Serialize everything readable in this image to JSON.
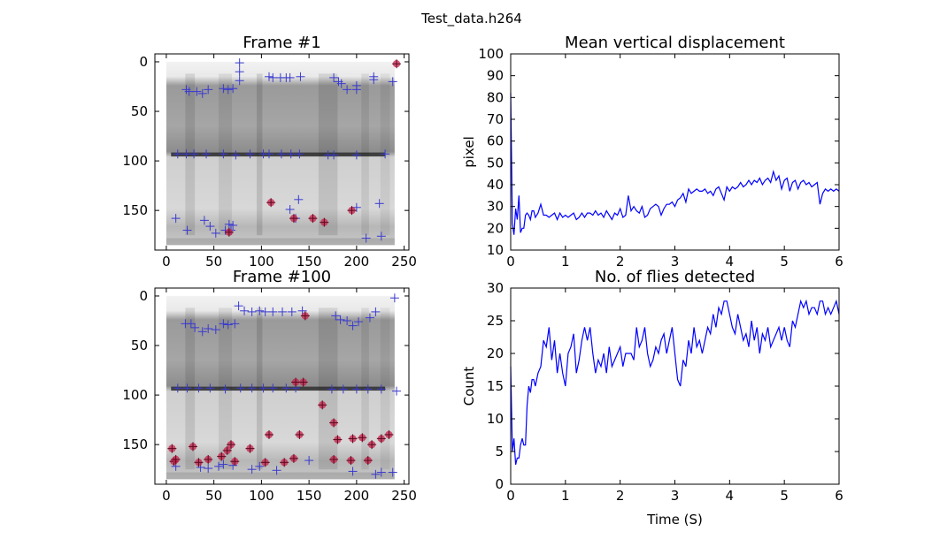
{
  "figure_title": "Test_data.h264",
  "colors": {
    "line": "#0000ff",
    "marker_blue": "#3a3ad0",
    "marker_red": "#c8204a",
    "axes": "#000000"
  },
  "chart_data": [
    {
      "type": "scatter",
      "title": "Frame #1",
      "xlim": [
        -12,
        255
      ],
      "ylim": [
        190,
        -8
      ],
      "xticks": [
        "0",
        "50",
        "100",
        "150",
        "200",
        "250"
      ],
      "yticks": [
        "0",
        "50",
        "100",
        "150"
      ],
      "blue_markers": [
        [
          21,
          28
        ],
        [
          24,
          30
        ],
        [
          32,
          30
        ],
        [
          38,
          32
        ],
        [
          44,
          28
        ],
        [
          60,
          27
        ],
        [
          65,
          28
        ],
        [
          70,
          27
        ],
        [
          77,
          10
        ],
        [
          77,
          19
        ],
        [
          77,
          1
        ],
        [
          108,
          15
        ],
        [
          112,
          16
        ],
        [
          120,
          16
        ],
        [
          126,
          16
        ],
        [
          130,
          16
        ],
        [
          141,
          15
        ],
        [
          176,
          16
        ],
        [
          181,
          20
        ],
        [
          184,
          22
        ],
        [
          190,
          28
        ],
        [
          200,
          24
        ],
        [
          200,
          28
        ],
        [
          218,
          18
        ],
        [
          218,
          15
        ],
        [
          238,
          20
        ],
        [
          12,
          93
        ],
        [
          21,
          93
        ],
        [
          29,
          93
        ],
        [
          42,
          93
        ],
        [
          60,
          93
        ],
        [
          73,
          94
        ],
        [
          88,
          93
        ],
        [
          102,
          93
        ],
        [
          108,
          93
        ],
        [
          121,
          93
        ],
        [
          131,
          93
        ],
        [
          140,
          93
        ],
        [
          170,
          94
        ],
        [
          176,
          94
        ],
        [
          200,
          94
        ],
        [
          230,
          93
        ],
        [
          10,
          158
        ],
        [
          22,
          170
        ],
        [
          40,
          160
        ],
        [
          46,
          166
        ],
        [
          52,
          173
        ],
        [
          62,
          170
        ],
        [
          66,
          164
        ],
        [
          68,
          170
        ],
        [
          70,
          165
        ],
        [
          130,
          149
        ],
        [
          136,
          158
        ],
        [
          139,
          139
        ],
        [
          200,
          147
        ],
        [
          210,
          178
        ],
        [
          224,
          143
        ],
        [
          226,
          176
        ]
      ],
      "red_markers": [
        [
          110,
          142
        ],
        [
          134,
          158
        ],
        [
          154,
          158
        ],
        [
          166,
          162
        ],
        [
          195,
          150
        ],
        [
          66,
          172
        ],
        [
          242,
          2
        ]
      ]
    },
    {
      "type": "line",
      "title": "Mean vertical displacement",
      "xlabel": "",
      "ylabel": "pixel",
      "xlim": [
        0,
        6
      ],
      "ylim": [
        10,
        100
      ],
      "xticks": [
        "0",
        "1",
        "2",
        "3",
        "4",
        "5",
        "6"
      ],
      "yticks": [
        "10",
        "20",
        "30",
        "40",
        "50",
        "60",
        "70",
        "80",
        "90",
        "100"
      ],
      "x": [
        0,
        0.03,
        0.06,
        0.09,
        0.12,
        0.15,
        0.18,
        0.21,
        0.24,
        0.27,
        0.3,
        0.33,
        0.36,
        0.39,
        0.42,
        0.45,
        0.5,
        0.55,
        0.6,
        0.65,
        0.7,
        0.75,
        0.8,
        0.85,
        0.9,
        0.95,
        1.0,
        1.05,
        1.1,
        1.15,
        1.2,
        1.25,
        1.3,
        1.35,
        1.4,
        1.45,
        1.5,
        1.55,
        1.6,
        1.65,
        1.7,
        1.75,
        1.8,
        1.85,
        1.9,
        1.95,
        2.0,
        2.05,
        2.1,
        2.15,
        2.2,
        2.25,
        2.3,
        2.35,
        2.4,
        2.45,
        2.5,
        2.55,
        2.6,
        2.65,
        2.7,
        2.75,
        2.8,
        2.85,
        2.9,
        2.95,
        3.0,
        3.05,
        3.1,
        3.15,
        3.2,
        3.25,
        3.3,
        3.35,
        3.4,
        3.45,
        3.5,
        3.55,
        3.6,
        3.65,
        3.7,
        3.75,
        3.8,
        3.85,
        3.9,
        3.95,
        4.0,
        4.05,
        4.1,
        4.15,
        4.2,
        4.25,
        4.3,
        4.35,
        4.4,
        4.45,
        4.5,
        4.55,
        4.6,
        4.65,
        4.7,
        4.75,
        4.8,
        4.85,
        4.9,
        4.95,
        5.0,
        5.05,
        5.1,
        5.15,
        5.2,
        5.25,
        5.3,
        5.35,
        5.4,
        5.45,
        5.5,
        5.55,
        5.6,
        5.65,
        5.7,
        5.75,
        5.8,
        5.85,
        5.9,
        5.95,
        6.0
      ],
      "y": [
        82,
        22,
        17,
        29,
        24,
        35,
        18,
        20,
        20,
        26,
        27,
        26,
        24,
        28,
        28,
        25,
        27,
        31,
        26,
        26,
        25,
        26,
        27,
        24,
        27,
        25,
        26,
        25,
        26,
        27,
        24,
        25,
        27,
        25,
        27,
        27,
        26,
        28,
        26,
        27,
        25,
        28,
        26,
        24,
        27,
        26,
        29,
        25,
        26,
        35,
        28,
        30,
        28,
        27,
        30,
        25,
        26,
        29,
        30,
        31,
        30,
        26,
        29,
        31,
        31,
        32,
        30,
        33,
        34,
        36,
        32,
        38,
        36,
        37,
        38,
        37,
        37,
        38,
        36,
        37,
        35,
        38,
        39,
        36,
        33,
        39,
        37,
        39,
        38,
        39,
        41,
        39,
        40,
        42,
        40,
        42,
        41,
        43,
        40,
        42,
        43,
        41,
        46,
        42,
        44,
        38,
        42,
        43,
        37,
        41,
        42,
        38,
        41,
        42,
        40,
        41,
        39,
        40,
        41,
        31,
        36,
        38,
        37,
        38,
        37,
        38,
        37
      ]
    },
    {
      "type": "scatter",
      "title": "Frame #100",
      "xlim": [
        -12,
        255
      ],
      "ylim": [
        190,
        -8
      ],
      "xticks": [
        "0",
        "50",
        "100",
        "150",
        "200",
        "250"
      ],
      "yticks": [
        "0",
        "50",
        "100",
        "150"
      ],
      "blue_markers": [
        [
          20,
          28
        ],
        [
          26,
          28
        ],
        [
          30,
          32
        ],
        [
          38,
          36
        ],
        [
          44,
          33
        ],
        [
          52,
          34
        ],
        [
          60,
          28
        ],
        [
          65,
          29
        ],
        [
          72,
          28
        ],
        [
          76,
          10
        ],
        [
          82,
          15
        ],
        [
          90,
          16
        ],
        [
          98,
          15
        ],
        [
          104,
          16
        ],
        [
          112,
          16
        ],
        [
          122,
          16
        ],
        [
          132,
          16
        ],
        [
          143,
          15
        ],
        [
          178,
          20
        ],
        [
          183,
          24
        ],
        [
          190,
          25
        ],
        [
          196,
          30
        ],
        [
          202,
          26
        ],
        [
          214,
          22
        ],
        [
          220,
          16
        ],
        [
          240,
          2
        ],
        [
          12,
          93
        ],
        [
          22,
          93
        ],
        [
          34,
          93
        ],
        [
          46,
          93
        ],
        [
          62,
          94
        ],
        [
          78,
          93
        ],
        [
          90,
          93
        ],
        [
          102,
          93
        ],
        [
          112,
          93
        ],
        [
          126,
          93
        ],
        [
          136,
          93
        ],
        [
          174,
          94
        ],
        [
          186,
          94
        ],
        [
          200,
          94
        ],
        [
          212,
          94
        ],
        [
          226,
          94
        ],
        [
          242,
          96
        ],
        [
          10,
          172
        ],
        [
          36,
          173
        ],
        [
          44,
          174
        ],
        [
          55,
          172
        ],
        [
          60,
          170
        ],
        [
          70,
          171
        ],
        [
          90,
          175
        ],
        [
          98,
          172
        ],
        [
          116,
          176
        ],
        [
          150,
          166
        ],
        [
          196,
          177
        ],
        [
          220,
          180
        ],
        [
          226,
          178
        ],
        [
          238,
          178
        ]
      ],
      "red_markers": [
        [
          6,
          154
        ],
        [
          8,
          167
        ],
        [
          10,
          165
        ],
        [
          28,
          152
        ],
        [
          34,
          168
        ],
        [
          44,
          165
        ],
        [
          58,
          162
        ],
        [
          64,
          156
        ],
        [
          68,
          150
        ],
        [
          72,
          167
        ],
        [
          88,
          154
        ],
        [
          104,
          168
        ],
        [
          108,
          140
        ],
        [
          124,
          168
        ],
        [
          134,
          164
        ],
        [
          136,
          87
        ],
        [
          144,
          87
        ],
        [
          140,
          140
        ],
        [
          146,
          20
        ],
        [
          164,
          110
        ],
        [
          176,
          128
        ],
        [
          176,
          165
        ],
        [
          180,
          145
        ],
        [
          196,
          144
        ],
        [
          194,
          166
        ],
        [
          206,
          143
        ],
        [
          212,
          166
        ],
        [
          216,
          150
        ],
        [
          226,
          144
        ],
        [
          234,
          140
        ]
      ]
    },
    {
      "type": "line",
      "title": "No. of flies detected",
      "xlabel": "Time (S)",
      "ylabel": "Count",
      "xlim": [
        0,
        6
      ],
      "ylim": [
        0,
        30
      ],
      "xticks": [
        "0",
        "1",
        "2",
        "3",
        "4",
        "5",
        "6"
      ],
      "yticks": [
        "0",
        "5",
        "10",
        "15",
        "20",
        "25",
        "30"
      ],
      "x": [
        0,
        0.03,
        0.06,
        0.09,
        0.12,
        0.15,
        0.18,
        0.21,
        0.24,
        0.27,
        0.3,
        0.33,
        0.36,
        0.39,
        0.42,
        0.45,
        0.5,
        0.55,
        0.6,
        0.65,
        0.7,
        0.75,
        0.8,
        0.85,
        0.9,
        0.95,
        1.0,
        1.05,
        1.1,
        1.15,
        1.2,
        1.25,
        1.3,
        1.35,
        1.4,
        1.45,
        1.5,
        1.55,
        1.6,
        1.65,
        1.7,
        1.75,
        1.8,
        1.85,
        1.9,
        1.95,
        2.0,
        2.05,
        2.1,
        2.15,
        2.2,
        2.25,
        2.3,
        2.35,
        2.4,
        2.45,
        2.5,
        2.55,
        2.6,
        2.65,
        2.7,
        2.75,
        2.8,
        2.85,
        2.9,
        2.95,
        3.0,
        3.05,
        3.1,
        3.15,
        3.2,
        3.25,
        3.3,
        3.35,
        3.4,
        3.45,
        3.5,
        3.55,
        3.6,
        3.65,
        3.7,
        3.75,
        3.8,
        3.85,
        3.9,
        3.95,
        4.0,
        4.05,
        4.1,
        4.15,
        4.2,
        4.25,
        4.3,
        4.35,
        4.4,
        4.45,
        4.5,
        4.55,
        4.6,
        4.65,
        4.7,
        4.75,
        4.8,
        4.85,
        4.9,
        4.95,
        5.0,
        5.05,
        5.1,
        5.15,
        5.2,
        5.25,
        5.3,
        5.35,
        5.4,
        5.45,
        5.5,
        5.55,
        5.6,
        5.65,
        5.7,
        5.75,
        5.8,
        5.85,
        5.9,
        5.95,
        6.0
      ],
      "y": [
        18,
        5,
        7,
        3,
        4,
        4,
        6,
        7,
        6,
        6,
        12,
        15,
        14,
        16,
        16,
        15,
        17,
        18,
        22,
        21,
        24,
        19,
        22,
        17,
        20,
        17,
        15,
        20,
        21,
        23,
        17,
        19,
        22,
        24,
        22,
        24,
        20,
        17,
        19,
        18,
        20,
        17,
        21,
        18,
        19,
        20,
        21,
        18,
        20,
        20,
        20,
        19,
        24,
        21,
        22,
        24,
        20,
        18,
        19,
        21,
        20,
        22,
        23,
        20,
        22,
        24,
        20,
        16,
        15,
        19,
        18,
        22,
        20,
        24,
        21,
        22,
        20,
        22,
        24,
        23,
        26,
        24,
        27,
        26,
        28,
        28,
        26,
        24,
        23,
        26,
        24,
        22,
        23,
        21,
        25,
        22,
        24,
        20,
        23,
        22,
        24,
        21,
        22,
        23,
        24,
        22,
        24,
        22,
        21,
        25,
        24,
        26,
        28,
        27,
        28,
        26,
        27,
        27,
        26,
        28,
        28,
        26,
        27,
        26,
        27,
        28,
        26
      ]
    }
  ]
}
